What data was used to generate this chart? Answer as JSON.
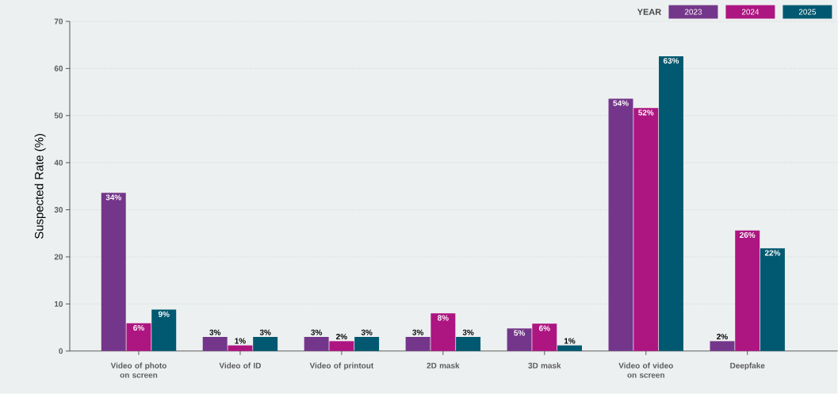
{
  "chart_data": {
    "type": "bar",
    "ylabel": "Suspected Rate (%)",
    "legend_title": "YEAR",
    "categories": [
      "Video of photo on screen",
      "Video of ID",
      "Video of printout",
      "2D mask",
      "3D mask",
      "Video of video on screen",
      "Deepfake"
    ],
    "series": [
      {
        "name": "2023",
        "color": "#74368a",
        "values": [
          33.6,
          3,
          3,
          3,
          4.8,
          53.6,
          2.1
        ],
        "value_labels": [
          "34%",
          "3%",
          "3%",
          "3%",
          "5%",
          "54%",
          "2%"
        ]
      },
      {
        "name": "2024",
        "color": "#ad1581",
        "values": [
          5.9,
          1.2,
          2.1,
          8,
          5.8,
          51.6,
          25.6
        ],
        "value_labels": [
          "6%",
          "1%",
          "2%",
          "8%",
          "6%",
          "52%",
          "26%"
        ]
      },
      {
        "name": "2025",
        "color": "#005970",
        "values": [
          8.8,
          3,
          3,
          3,
          1.2,
          62.6,
          21.8
        ],
        "value_labels": [
          "9%",
          "3%",
          "3%",
          "3%",
          "1%",
          "63%",
          "22%"
        ]
      }
    ],
    "ylim": [
      0,
      70
    ],
    "yticks": [
      0,
      10,
      20,
      30,
      40,
      50,
      60,
      70
    ],
    "grid": "y",
    "legend": "top right"
  }
}
